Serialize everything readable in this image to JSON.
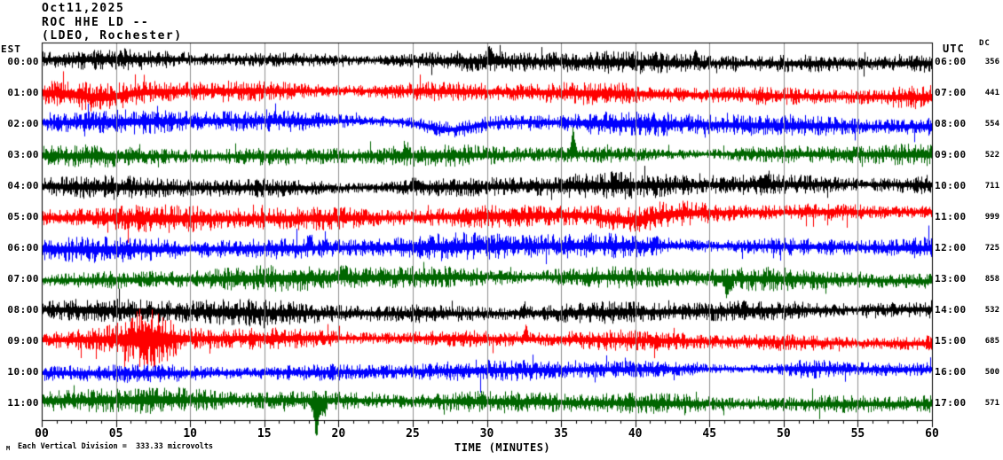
{
  "title": {
    "date": "Oct11,2025",
    "station": "ROC HHE LD --",
    "network": "(LDEO, Rochester)"
  },
  "axes": {
    "left_header": "EST",
    "right_header": "UTC",
    "dc_header": "DC",
    "x_label": "TIME (MINUTES)",
    "x_tick_labels": [
      "00",
      "05",
      "10",
      "15",
      "20",
      "25",
      "30",
      "35",
      "40",
      "45",
      "50",
      "55",
      "60"
    ],
    "footer": "Each Vertical Division =  333.33 microvolts",
    "watermark": "M"
  },
  "colors": {
    "trace_cycle": [
      "#000000",
      "#ff0000",
      "#0000ff",
      "#006600"
    ],
    "grid": "#909090",
    "border": "#000000",
    "background": "#ffffff"
  },
  "chart_data": {
    "type": "line",
    "title": "ROC HHE LD -- helicorder, Oct11,2025 (LDEO, Rochester)",
    "xlabel": "TIME (MINUTES)",
    "x_range_minutes": [
      0,
      60
    ],
    "minutes_per_row": 60,
    "vertical_division_microvolts": 333.33,
    "grid": "vertical lines every 5 minutes",
    "rows": [
      {
        "est": "00:00",
        "utc": "06:00",
        "dc": "356",
        "color": "#000000",
        "seed": 101,
        "amp": 10,
        "wander": 3,
        "events": [
          {
            "type": "upspike",
            "center": 30.2,
            "width": 0.25,
            "size": 14
          },
          {
            "type": "upspike",
            "center": 44.1,
            "width": 0.25,
            "size": 12
          }
        ]
      },
      {
        "est": "01:00",
        "utc": "07:00",
        "dc": "441",
        "color": "#ff0000",
        "seed": 202,
        "amp": 11,
        "wander": 5,
        "events": [
          {
            "type": "drift",
            "center": 4.0,
            "width": 2.0,
            "offset": 6
          }
        ]
      },
      {
        "est": "02:00",
        "utc": "08:00",
        "dc": "554",
        "color": "#0000ff",
        "seed": 303,
        "amp": 11,
        "wander": 4,
        "events": [
          {
            "type": "drift",
            "center": 27.5,
            "width": 2.2,
            "offset": 9
          }
        ]
      },
      {
        "est": "03:00",
        "utc": "09:00",
        "dc": "522",
        "color": "#006600",
        "seed": 404,
        "amp": 10,
        "wander": 3,
        "events": [
          {
            "type": "upspike",
            "center": 35.8,
            "width": 0.3,
            "size": 26
          },
          {
            "type": "upspike",
            "center": 24.5,
            "width": 0.25,
            "size": 12
          }
        ]
      },
      {
        "est": "04:00",
        "utc": "10:00",
        "dc": "711",
        "color": "#000000",
        "seed": 505,
        "amp": 11,
        "wander": 5,
        "events": [
          {
            "type": "upspike",
            "center": 25.0,
            "width": 0.3,
            "size": 10
          },
          {
            "type": "upspike",
            "center": 48.8,
            "width": 0.3,
            "size": 10
          }
        ]
      },
      {
        "est": "05:00",
        "utc": "11:00",
        "dc": "999",
        "color": "#ff0000",
        "seed": 606,
        "amp": 12,
        "wander": 6,
        "events": [
          {
            "type": "drift",
            "center": 39.5,
            "width": 2.0,
            "offset": 7
          }
        ]
      },
      {
        "est": "06:00",
        "utc": "12:00",
        "dc": "725",
        "color": "#0000ff",
        "seed": 707,
        "amp": 12,
        "wander": 5,
        "events": [
          {
            "type": "upspike",
            "center": 18.0,
            "width": 0.3,
            "size": 10
          }
        ]
      },
      {
        "est": "07:00",
        "utc": "13:00",
        "dc": "858",
        "color": "#006600",
        "seed": 808,
        "amp": 11,
        "wander": 5,
        "events": [
          {
            "type": "downspike",
            "center": 46.2,
            "width": 0.4,
            "size": 18
          },
          {
            "type": "upspike",
            "center": 20.3,
            "width": 0.3,
            "size": 14
          }
        ]
      },
      {
        "est": "08:00",
        "utc": "14:00",
        "dc": "532",
        "color": "#000000",
        "seed": 909,
        "amp": 11,
        "wander": 5,
        "events": [
          {
            "type": "upspike",
            "center": 32.5,
            "width": 0.25,
            "size": 10
          }
        ]
      },
      {
        "est": "09:00",
        "utc": "15:00",
        "dc": "685",
        "color": "#ff0000",
        "seed": 111,
        "amp": 10,
        "wander": 4,
        "events": [
          {
            "type": "burst",
            "center": 7.2,
            "width": 1.8,
            "mult": 2.6
          },
          {
            "type": "upspike",
            "center": 32.6,
            "width": 0.25,
            "size": 12
          }
        ]
      },
      {
        "est": "10:00",
        "utc": "16:00",
        "dc": "500",
        "color": "#0000ff",
        "seed": 222,
        "amp": 9,
        "wander": 4,
        "events": [
          {
            "type": "burst",
            "center": 51.5,
            "width": 1.5,
            "mult": 1.5
          }
        ]
      },
      {
        "est": "11:00",
        "utc": "17:00",
        "dc": "571",
        "color": "#006600",
        "seed": 333,
        "amp": 11,
        "wander": 4,
        "events": [
          {
            "type": "downspike",
            "center": 18.5,
            "width": 0.35,
            "size": 38
          },
          {
            "type": "downspike",
            "center": 19.0,
            "width": 0.25,
            "size": 20
          }
        ]
      }
    ]
  }
}
